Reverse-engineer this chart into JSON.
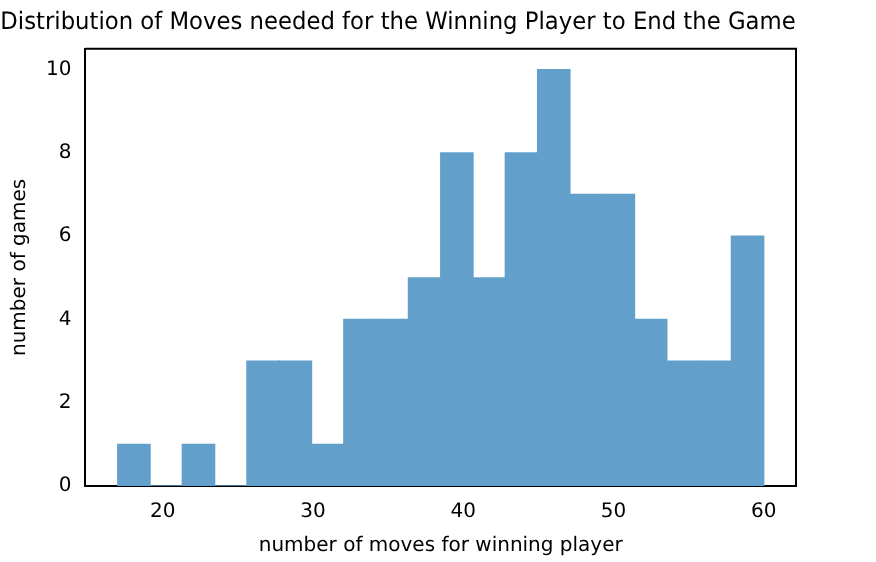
{
  "chart_data": {
    "type": "histogram",
    "title": "Distribution of Moves needed for the Winning Player to End the Game",
    "xlabel": "number of moves for winning player",
    "ylabel": "number of games",
    "bins": [
      17,
      19.15,
      21.3,
      23.45,
      25.6,
      27.75,
      29.9,
      32.05,
      34.2,
      36.35,
      38.5,
      40.65,
      42.8,
      44.95,
      47.1,
      49.25,
      51.4,
      53.55,
      55.7,
      57.85,
      60
    ],
    "values": [
      1,
      0,
      1,
      0,
      3,
      3,
      1,
      4,
      4,
      5,
      8,
      5,
      8,
      10,
      7,
      7,
      4,
      3,
      3,
      6
    ],
    "color": "#62a0cb",
    "xlim": [
      14.85,
      62.15
    ],
    "xticks": [
      20,
      30,
      40,
      50,
      60
    ],
    "ylim": [
      0,
      10.5
    ],
    "yticks": [
      0,
      2,
      4,
      6,
      8,
      10
    ],
    "grid": false,
    "legend": false
  }
}
